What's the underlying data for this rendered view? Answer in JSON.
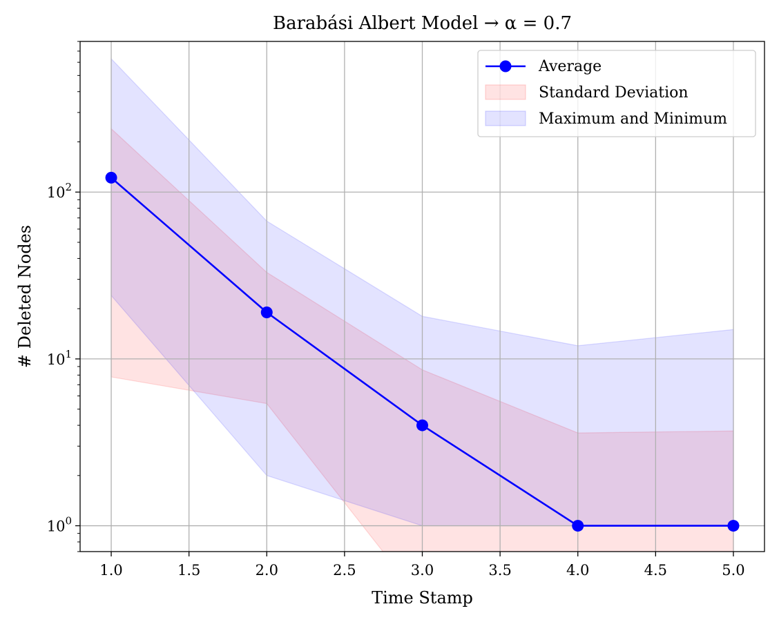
{
  "chart_data": {
    "type": "line",
    "title": "Barabási Albert Model → α = 0.7",
    "xlabel": "Time Stamp",
    "ylabel": "# Deleted Nodes",
    "x": [
      1.0,
      2.0,
      3.0,
      4.0,
      5.0
    ],
    "xlim": [
      0.8,
      5.2
    ],
    "ylim": [
      0.7,
      800
    ],
    "yscale": "log",
    "grid": true,
    "legend_position": "top-right",
    "x_ticks": [
      "1.0",
      "1.5",
      "2.0",
      "2.5",
      "3.0",
      "3.5",
      "4.0",
      "4.5",
      "5.0"
    ],
    "y_ticks": [
      {
        "base": "10",
        "exp": "0"
      },
      {
        "base": "10",
        "exp": "1"
      },
      {
        "base": "10",
        "exp": "2"
      }
    ],
    "series": [
      {
        "name": "Average",
        "kind": "line",
        "color": "#0000ff",
        "values": [
          122,
          19,
          4,
          1,
          1
        ]
      },
      {
        "name": "Standard Deviation",
        "kind": "band",
        "color": "#ff0000",
        "upper": [
          240,
          33,
          8.6,
          3.6,
          3.7
        ],
        "lower": [
          7.8,
          5.4,
          0.1,
          0.1,
          0.1
        ],
        "lower_segments": [
          [
            1.0,
            7.8
          ],
          [
            2.0,
            5.4
          ]
        ]
      },
      {
        "name": "Maximum and Minimum",
        "kind": "band",
        "color": "#0000ff",
        "upper": [
          630,
          67,
          18,
          12,
          15
        ],
        "lower": [
          24,
          2,
          1,
          1,
          1
        ],
        "lower_segments": [
          [
            1.0,
            24
          ],
          [
            2.0,
            2
          ]
        ]
      }
    ]
  }
}
